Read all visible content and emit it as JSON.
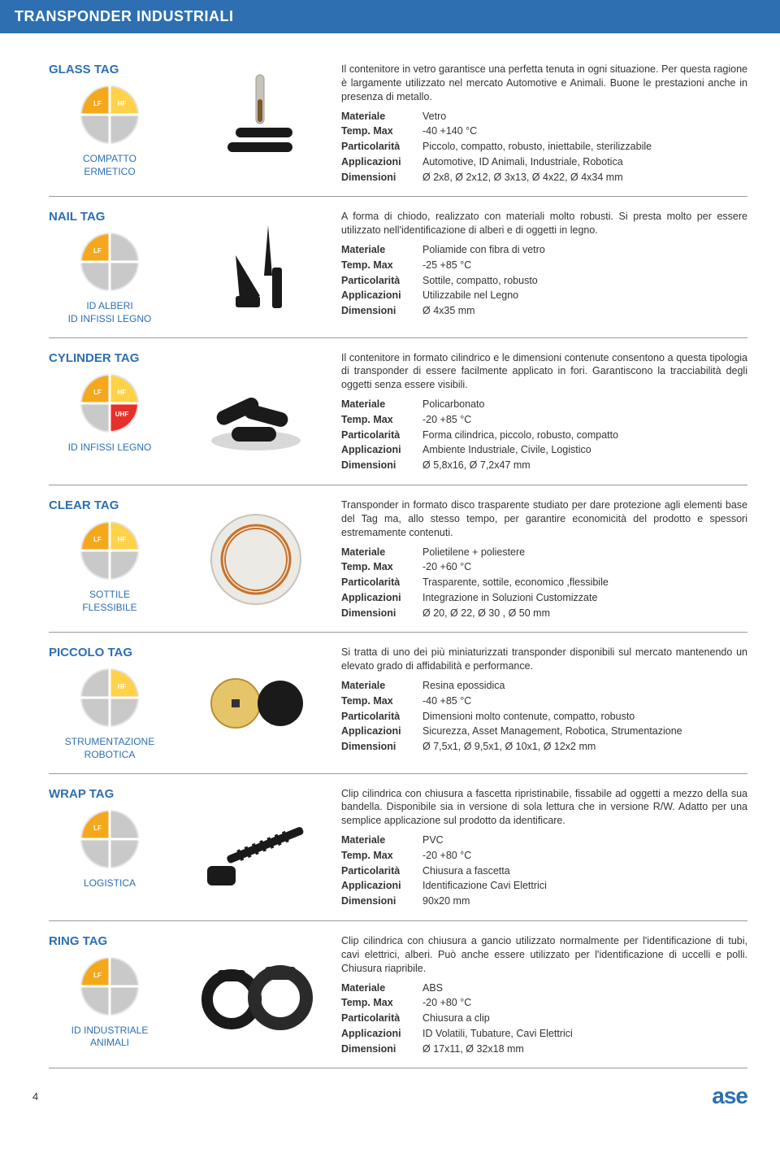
{
  "header": "TRANSPONDER INDUSTRIALI",
  "pie_colors": {
    "lf": "#f6a81c",
    "hf": "#ffd24a",
    "uhf": "#e8302a",
    "off": "#c9c9c9",
    "bg": "#e3e3e3"
  },
  "products": [
    {
      "title": "GLASS TAG",
      "pie": {
        "lf": true,
        "hf": true,
        "uhf": false,
        "mw": false
      },
      "sub": "COMPATTO\nERMETICO",
      "img": "glass",
      "desc": "Il contenitore in vetro garantisce una perfetta tenuta in ogni situazione. Per questa ragione è largamente utilizzato nel mercato Automotive e Animali. Buone le prestazioni anche in presenza di metallo.",
      "specs": {
        "Materiale": "Vetro",
        "Temp. Max": "-40 +140 °C",
        "Particolarità": "Piccolo, compatto, robusto, iniettabile, sterilizzabile",
        "Applicazioni": "Automotive, ID Animali, Industriale, Robotica",
        "Dimensioni": "Ø 2x8, Ø 2x12, Ø 3x13, Ø 4x22, Ø 4x34 mm"
      }
    },
    {
      "title": "NAIL TAG",
      "pie": {
        "lf": true,
        "hf": false,
        "uhf": false,
        "mw": false
      },
      "sub": "ID ALBERI\nID INFISSI LEGNO",
      "img": "nail",
      "desc": "A forma di chiodo, realizzato con materiali molto robusti. Si presta molto per essere utilizzato nell'identificazione di alberi e di oggetti in legno.",
      "specs": {
        "Materiale": "Poliamide con fibra di vetro",
        "Temp. Max": "-25 +85 °C",
        "Particolarità": "Sottile, compatto, robusto",
        "Applicazioni": "Utilizzabile nel Legno",
        "Dimensioni": "Ø 4x35 mm"
      }
    },
    {
      "title": "CYLINDER TAG",
      "pie": {
        "lf": true,
        "hf": true,
        "uhf": true,
        "mw": false
      },
      "sub": "ID INFISSI LEGNO",
      "img": "cylinder",
      "desc": "Il contenitore in formato cilindrico e le dimensioni contenute consentono a questa tipologia di transponder di essere facilmente applicato in fori. Garantiscono la tracciabilità degli oggetti senza essere visibili.",
      "specs": {
        "Materiale": "Policarbonato",
        "Temp. Max": "-20 +85 °C",
        "Particolarità": "Forma cilindrica, piccolo, robusto, compatto",
        "Applicazioni": "Ambiente Industriale, Civile, Logistico",
        "Dimensioni": "Ø 5,8x16, Ø 7,2x47 mm"
      }
    },
    {
      "title": "CLEAR TAG",
      "pie": {
        "lf": true,
        "hf": true,
        "uhf": false,
        "mw": false
      },
      "sub": "SOTTILE\nFLESSIBILE",
      "img": "clear",
      "desc": "Transponder in formato disco trasparente studiato per dare protezione agli elementi base del Tag ma, allo stesso tempo, per garantire economicità del prodotto e spessori estremamente contenuti.",
      "specs": {
        "Materiale": "Polietilene + poliestere",
        "Temp. Max": "-20 +60 °C",
        "Particolarità": "Trasparente, sottile, economico ,flessibile",
        "Applicazioni": "Integrazione in Soluzioni Customizzate",
        "Dimensioni": "Ø 20, Ø 22, Ø 30 , Ø 50 mm"
      }
    },
    {
      "title": "PICCOLO TAG",
      "pie": {
        "lf": false,
        "hf": true,
        "uhf": false,
        "mw": false
      },
      "sub": "STRUMENTAZIONE\nROBOTICA",
      "img": "piccolo",
      "desc": "Si tratta di uno dei più miniaturizzati transponder disponibili sul mercato mantenendo un elevato grado di affidabilità e performance.",
      "specs": {
        "Materiale": "Resina epossidica",
        "Temp. Max": "-40 +85 °C",
        "Particolarità": "Dimensioni molto contenute, compatto, robusto",
        "Applicazioni": "Sicurezza, Asset Management, Robotica, Strumentazione",
        "Dimensioni": "Ø 7,5x1, Ø 9,5x1, Ø 10x1, Ø 12x2 mm"
      }
    },
    {
      "title": "WRAP TAG",
      "pie": {
        "lf": true,
        "hf": false,
        "uhf": false,
        "mw": false
      },
      "sub": "LOGISTICA",
      "img": "wrap",
      "desc": "Clip cilindrica con chiusura a fascetta ripristinabile, fissabile ad oggetti a mezzo della sua bandella. Disponibile sia in versione di sola lettura che in versione R/W. Adatto per una semplice applicazione sul prodotto da identificare.",
      "specs": {
        "Materiale": "PVC",
        "Temp. Max": "-20 +80 °C",
        "Particolarità": "Chiusura a fascetta",
        "Applicazioni": "Identificazione Cavi Elettrici",
        "Dimensioni": "90x20 mm"
      }
    },
    {
      "title": "RING TAG",
      "pie": {
        "lf": true,
        "hf": false,
        "uhf": false,
        "mw": false
      },
      "sub": "ID INDUSTRIALE\nANIMALI",
      "img": "ring",
      "desc": "Clip cilindrica con chiusura a gancio utilizzato normalmente per l'identificazione di tubi, cavi elettrici, alberi. Può anche essere utilizzato per l'identificazione di uccelli e polli. Chiusura riapribile.",
      "specs": {
        "Materiale": "ABS",
        "Temp. Max": "-20 +80 °C",
        "Particolarità": "Chiusura a clip",
        "Applicazioni": "ID Volatili, Tubature, Cavi Elettrici",
        "Dimensioni": "Ø 17x11, Ø 32x18 mm"
      }
    }
  ],
  "footer": {
    "page": "4",
    "logo": "ase"
  }
}
